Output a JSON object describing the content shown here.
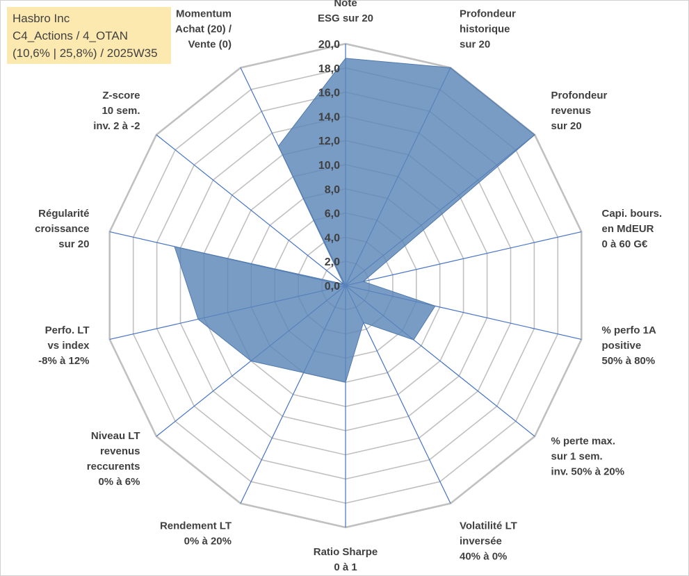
{
  "chart_data": {
    "type": "radar",
    "title_lines": [
      "Hasbro Inc",
      "C4_Actions / 4_OTAN",
      "(10,6% | 25,8%) / 2025W35"
    ],
    "radial_range": [
      0,
      20
    ],
    "radial_step": 2,
    "radial_ticks": [
      "0,0",
      "2,0",
      "4,0",
      "6,0",
      "8,0",
      "10,0",
      "12,0",
      "14,0",
      "16,0",
      "18,0",
      "20,0"
    ],
    "grid": true,
    "axes": [
      {
        "label": [
          "Note",
          "ESG sur 20"
        ],
        "value": 18.8
      },
      {
        "label": [
          "Profondeur",
          "historique",
          "sur 20"
        ],
        "value": 20.0
      },
      {
        "label": [
          "Profondeur",
          "revenus",
          "sur 20"
        ],
        "value": 20.0
      },
      {
        "label": [
          "Capi. bours.",
          "en MdEUR",
          "0 à 60 G€"
        ],
        "value": 1.5
      },
      {
        "label": [
          "% perfo 1A",
          "positive",
          "50% à 80%"
        ],
        "value": 7.6
      },
      {
        "label": [
          "% perte max.",
          "sur 1 sem.",
          "inv. 50% à 20%"
        ],
        "value": 7.2
      },
      {
        "label": [
          "Volatilité LT",
          "inversée",
          "40% à 0%"
        ],
        "value": 3.4
      },
      {
        "label": [
          "Ratio Sharpe",
          "0 à 1"
        ],
        "value": 8.0
      },
      {
        "label": [
          "Rendement LT",
          "0% à 20%"
        ],
        "value": 8.0
      },
      {
        "label": [
          "Niveau LT",
          "revenus",
          "reccurents",
          "0% à 6%"
        ],
        "value": 10.0
      },
      {
        "label": [
          "Perfo. LT",
          "vs index",
          "-8% à 12%"
        ],
        "value": 12.5
      },
      {
        "label": [
          "Régularité",
          "croissance",
          "sur 20"
        ],
        "value": 14.5
      },
      {
        "label": [
          "Z-score",
          "10 sem.",
          "inv. 2 à -2"
        ],
        "value": 0.2
      },
      {
        "label": [
          "Momentum",
          "Achat (20) /",
          "Vente (0)"
        ],
        "value": 12.8
      }
    ],
    "series": [
      {
        "values": [
          18.8,
          20.0,
          20.0,
          1.5,
          7.6,
          7.2,
          3.4,
          8.0,
          8.0,
          10.0,
          12.5,
          14.5,
          0.2,
          12.8
        ]
      }
    ],
    "colors": {
      "fill": "#5b86b8",
      "grid": "#c0c0c0",
      "spoke": "#4472c4",
      "title_bg": "#fce9b0"
    }
  }
}
